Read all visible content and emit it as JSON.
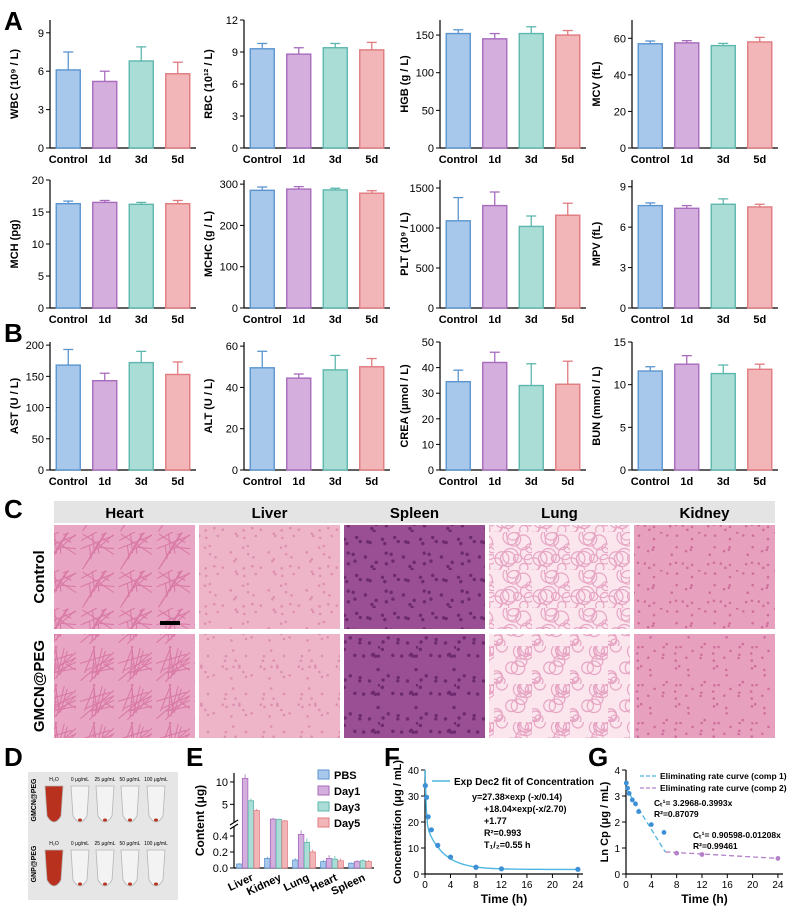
{
  "panel_labels": [
    "A",
    "B",
    "C",
    "D",
    "E",
    "F",
    "G"
  ],
  "colors": {
    "blue": "#a7c8ea",
    "blue_edge": "#5b95d0",
    "purple": "#d4aedd",
    "purple_edge": "#a86bbd",
    "teal": "#a9ddd6",
    "teal_edge": "#5db7ad",
    "pink": "#f2b6b8",
    "pink_edge": "#e07b80",
    "curve": "#4fb6e0",
    "point": "#3d8fd6",
    "point2": "#b480c8"
  },
  "histology": {
    "columns": [
      "Heart",
      "Liver",
      "Spleen",
      "Lung",
      "Kidney"
    ],
    "rows": [
      "Control",
      "GMCN@PEG"
    ],
    "tissue_colors": {
      "Heart": [
        "#e9a6c4",
        "#d97aa6"
      ],
      "Liver": [
        "#eeb5c9",
        "#dd8fb0"
      ],
      "Spleen": [
        "#9a4f95",
        "#6d2a6f"
      ],
      "Lung": [
        "#fbe6ee",
        "#e7a6c4"
      ],
      "Kidney": [
        "#e7a1bf",
        "#cf6f9c"
      ]
    }
  },
  "vials": {
    "row_labels": [
      "GMCN@PEG",
      "GNP@PEG"
    ],
    "col_labels": [
      "H₂O",
      "0 μg/mL",
      "25 μg/mL",
      "50 μg/mL",
      "100 μg/mL"
    ]
  },
  "chart_data": [
    {
      "id": "wbc",
      "type": "bar",
      "categories": [
        "Control",
        "1d",
        "3d",
        "5d"
      ],
      "values": [
        6.1,
        5.2,
        6.8,
        5.8
      ],
      "errors": [
        1.4,
        0.8,
        1.1,
        0.9
      ],
      "ylabel": "WBC (10⁹ / L)",
      "ylim": [
        0,
        10
      ],
      "yticks": [
        0,
        3,
        6,
        9
      ],
      "ytick_labels": [
        "0",
        "3",
        "6",
        "9"
      ]
    },
    {
      "id": "rbc",
      "type": "bar",
      "categories": [
        "Control",
        "1d",
        "3d",
        "5d"
      ],
      "values": [
        9.3,
        8.8,
        9.4,
        9.2
      ],
      "errors": [
        0.5,
        0.6,
        0.4,
        0.7
      ],
      "ylabel": "RBC (10¹² / L)",
      "ylim": [
        0,
        12
      ],
      "yticks": [
        0,
        3,
        6,
        9,
        12
      ],
      "ytick_labels": [
        "0",
        "3",
        "6",
        "9",
        "12"
      ]
    },
    {
      "id": "hgb",
      "type": "bar",
      "categories": [
        "Control",
        "1d",
        "3d",
        "5d"
      ],
      "values": [
        152,
        145,
        152,
        150
      ],
      "errors": [
        5,
        7,
        9,
        6
      ],
      "ylabel": "HGB (g / L)",
      "ylim": [
        0,
        170
      ],
      "yticks": [
        0,
        50,
        100,
        150
      ],
      "ytick_labels": [
        "0",
        "50",
        "100",
        "150"
      ]
    },
    {
      "id": "mcv",
      "type": "bar",
      "categories": [
        "Control",
        "1d",
        "3d",
        "5d"
      ],
      "values": [
        57,
        57.5,
        56,
        58
      ],
      "errors": [
        1.5,
        1.2,
        1.2,
        2.5
      ],
      "ylabel": "MCV (fL)",
      "ylim": [
        0,
        70
      ],
      "yticks": [
        0,
        20,
        40,
        60
      ],
      "ytick_labels": [
        "0",
        "20",
        "40",
        "60"
      ]
    },
    {
      "id": "mch",
      "type": "bar",
      "categories": [
        "Control",
        "1d",
        "3d",
        "5d"
      ],
      "values": [
        16.3,
        16.5,
        16.2,
        16.3
      ],
      "errors": [
        0.4,
        0.3,
        0.3,
        0.5
      ],
      "ylabel": "MCH (pg)",
      "ylim": [
        0,
        20
      ],
      "yticks": [
        0,
        5,
        10,
        15,
        20
      ],
      "ytick_labels": [
        "0",
        "5",
        "10",
        "15",
        "20"
      ]
    },
    {
      "id": "mchc",
      "type": "bar",
      "categories": [
        "Control",
        "1d",
        "3d",
        "5d"
      ],
      "values": [
        285,
        288,
        286,
        278
      ],
      "errors": [
        8,
        6,
        4,
        6
      ],
      "ylabel": "MCHC (g / L)",
      "ylim": [
        0,
        310
      ],
      "yticks": [
        0,
        100,
        200,
        300
      ],
      "ytick_labels": [
        "0",
        "100",
        "200",
        "300"
      ]
    },
    {
      "id": "plt",
      "type": "bar",
      "categories": [
        "Control",
        "1d",
        "3d",
        "5d"
      ],
      "values": [
        1090,
        1280,
        1020,
        1160
      ],
      "errors": [
        290,
        170,
        130,
        150
      ],
      "ylabel": "PLT (10⁹ / L)",
      "ylim": [
        0,
        1600
      ],
      "yticks": [
        0,
        500,
        1000,
        1500
      ],
      "ytick_labels": [
        "0",
        "500",
        "1000",
        "1500"
      ]
    },
    {
      "id": "mpv",
      "type": "bar",
      "categories": [
        "Control",
        "1d",
        "3d",
        "5d"
      ],
      "values": [
        7.6,
        7.4,
        7.7,
        7.5
      ],
      "errors": [
        0.2,
        0.2,
        0.4,
        0.2
      ],
      "ylabel": "MPV (fL)",
      "ylim": [
        0,
        9.5
      ],
      "yticks": [
        0,
        3,
        6,
        9
      ],
      "ytick_labels": [
        "0",
        "3",
        "6",
        "9"
      ]
    },
    {
      "id": "ast",
      "type": "bar",
      "categories": [
        "Control",
        "1d",
        "3d",
        "5d"
      ],
      "values": [
        168,
        143,
        172,
        153
      ],
      "errors": [
        25,
        12,
        18,
        20
      ],
      "ylabel": "AST (U / L)",
      "ylim": [
        0,
        205
      ],
      "yticks": [
        0,
        50,
        100,
        150,
        200
      ],
      "ytick_labels": [
        "0",
        "50",
        "100",
        "150",
        "200"
      ]
    },
    {
      "id": "alt",
      "type": "bar",
      "categories": [
        "Control",
        "1d",
        "3d",
        "5d"
      ],
      "values": [
        49.5,
        44.5,
        48.5,
        50
      ],
      "errors": [
        8,
        2,
        7,
        4
      ],
      "ylabel": "ALT (U / L)",
      "ylim": [
        0,
        62
      ],
      "yticks": [
        0,
        20,
        40,
        60
      ],
      "ytick_labels": [
        "0",
        "20",
        "40",
        "60"
      ]
    },
    {
      "id": "crea",
      "type": "bar",
      "categories": [
        "Control",
        "1d",
        "3d",
        "5d"
      ],
      "values": [
        34.5,
        42,
        33,
        33.5
      ],
      "errors": [
        4.5,
        4,
        8.5,
        9
      ],
      "ylabel": "CREA (μmol / L)",
      "ylim": [
        0,
        50
      ],
      "yticks": [
        0,
        10,
        20,
        30,
        40,
        50
      ],
      "ytick_labels": [
        "0",
        "10",
        "20",
        "30",
        "40",
        "50"
      ]
    },
    {
      "id": "bun",
      "type": "bar",
      "categories": [
        "Control",
        "1d",
        "3d",
        "5d"
      ],
      "values": [
        11.6,
        12.4,
        11.3,
        11.8
      ],
      "errors": [
        0.5,
        1,
        1,
        0.6
      ],
      "ylabel": "BUN (mmol / L)",
      "ylim": [
        0,
        15
      ],
      "yticks": [
        0,
        5,
        10,
        15
      ],
      "ytick_labels": [
        "0",
        "5",
        "10",
        "15"
      ]
    },
    {
      "id": "content",
      "type": "bar",
      "categories": [
        "Liver",
        "Kidney",
        "Lung",
        "Heart",
        "Spleen"
      ],
      "series": [
        {
          "name": "PBS",
          "values": [
            0.05,
            0.12,
            0.1,
            0.08,
            0.06
          ]
        },
        {
          "name": "Day1",
          "values": [
            10.8,
            1.7,
            0.42,
            0.12,
            0.08
          ]
        },
        {
          "name": "Day3",
          "values": [
            5.8,
            1.6,
            0.32,
            0.11,
            0.09
          ]
        },
        {
          "name": "Day5",
          "values": [
            3.6,
            1.3,
            0.2,
            0.09,
            0.08
          ]
        }
      ],
      "errors": [
        [
          0.01,
          0.02,
          0.02,
          0.02,
          0.01
        ],
        [
          0.9,
          0.3,
          0.05,
          0.04,
          0.02
        ],
        [
          0.5,
          0.25,
          0.05,
          0.04,
          0.02
        ],
        [
          0.4,
          0.2,
          0.03,
          0.03,
          0.02
        ]
      ],
      "ylabel": "Content (μg)",
      "ylim": [
        0,
        12
      ],
      "yticks": [
        0,
        0.2,
        0.4,
        5,
        10
      ],
      "ytick_labels": [
        "0.0",
        "0.2",
        "0.4",
        "5",
        "10"
      ],
      "axis_break": [
        0.5,
        1.5
      ]
    },
    {
      "id": "conc",
      "type": "scatter",
      "x": [
        0.05,
        0.25,
        0.5,
        1,
        2,
        4,
        8,
        12,
        24
      ],
      "y": [
        34,
        29.5,
        22,
        17,
        11,
        6.5,
        2.6,
        2,
        1.8
      ],
      "fit_label": "Exp Dec2 fit of Concentration",
      "annotation": [
        "y=27.38×exp (-x/0.14)",
        "+18.04×exp(-x/2.70)",
        "+1.77",
        "R²=0.993",
        "T₁/₂=0.55 h"
      ],
      "xlabel": "Time (h)",
      "ylabel": "Concentration (μg / mL)",
      "xlim": [
        0,
        24.8
      ],
      "ylim": [
        0,
        40
      ],
      "xticks": [
        0,
        4,
        8,
        12,
        16,
        20,
        24
      ],
      "yticks": [
        0,
        10,
        20,
        30,
        40
      ]
    },
    {
      "id": "lncp",
      "type": "line",
      "x1": [
        0.05,
        0.25,
        0.5,
        1,
        1.5,
        2,
        4,
        6
      ],
      "y1": [
        3.5,
        3.3,
        3.1,
        2.85,
        2.7,
        2.4,
        1.9,
        1.6
      ],
      "x2": [
        8,
        12,
        24
      ],
      "y2": [
        0.8,
        0.75,
        0.6
      ],
      "legend": [
        "Eliminating rate curve (comp 1)",
        "Eliminating rate curve (comp 2)"
      ],
      "annotation1": [
        "Cₜ¹= 3.2968-0.3993x",
        "R²=0.87079"
      ],
      "annotation2": [
        "Cₜ¹= 0.90598-0.01208x",
        "R²=0.99461"
      ],
      "xlabel": "Time (h)",
      "ylabel": "Ln Cp (μg / mL)",
      "xlim": [
        0,
        24.8
      ],
      "ylim": [
        0,
        4
      ],
      "xticks": [
        0,
        4,
        8,
        12,
        16,
        20,
        24
      ],
      "yticks": [
        0,
        1,
        2,
        3,
        4
      ]
    }
  ]
}
